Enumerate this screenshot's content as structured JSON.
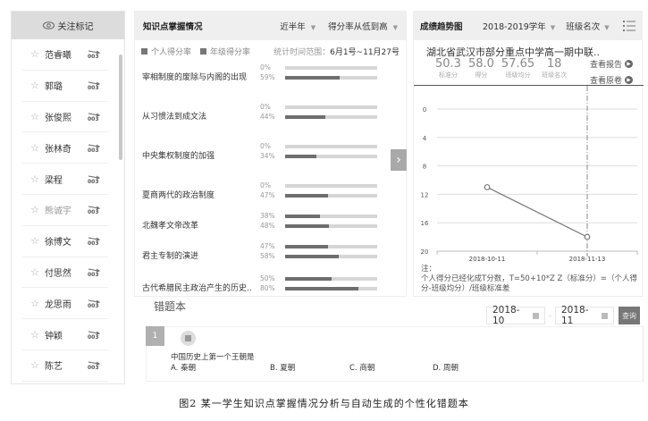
{
  "sidebar": {
    "header_label": "关注标记",
    "header_icon": "eye-icon",
    "students": [
      {
        "name": "范睿曦",
        "muted": false
      },
      {
        "name": "郭璐",
        "muted": false
      },
      {
        "name": "张俊熙",
        "muted": false
      },
      {
        "name": "张林奇",
        "muted": false
      },
      {
        "name": "梁程",
        "muted": false
      },
      {
        "name": "熊诚宇",
        "muted": true
      },
      {
        "name": "徐博文",
        "muted": false
      },
      {
        "name": "付思然",
        "muted": false
      },
      {
        "name": "龙思雨",
        "muted": false
      },
      {
        "name": "钟颖",
        "muted": false
      },
      {
        "name": "陈艺",
        "muted": false
      }
    ]
  },
  "knowledge": {
    "title": "知识点掌握情况",
    "period_select": "近半年",
    "sort_select": "得分率从低到高",
    "legend": {
      "personal": "个人得分率",
      "grade": "年级得分率"
    },
    "range_label": "统计时间范围：",
    "range_value": "6月1号~11月27号",
    "items": [
      {
        "label": "宰相制度的废除与内阁的出现",
        "personal": "0%",
        "grade": "59%",
        "p": 0,
        "g": 59
      },
      {
        "label": "从习惯法到成文法",
        "personal": "0%",
        "grade": "44%",
        "p": 0,
        "g": 44
      },
      {
        "label": "中央集权制度的加强",
        "personal": "0%",
        "grade": "34%",
        "p": 0,
        "g": 34
      },
      {
        "label": "夏商两代的政治制度",
        "personal": "0%",
        "grade": "47%",
        "p": 0,
        "g": 47
      },
      {
        "label": "北魏孝文帝改革",
        "personal": "38%",
        "grade": "48%",
        "p": 38,
        "g": 48
      },
      {
        "label": "君主专制的演进",
        "personal": "47%",
        "grade": "58%",
        "p": 47,
        "g": 58
      },
      {
        "label": "古代希腊民主政治产生的历史..",
        "personal": "50%",
        "grade": "80%",
        "p": 50,
        "g": 80
      }
    ],
    "next_icon": "chevron-right-icon"
  },
  "trend": {
    "title": "成绩趋势图",
    "year_select": "2018-2019学年",
    "metric_select": "班级名次",
    "exam_title": "湖北省武汉市部分重点中学高一期中联..",
    "stats": [
      {
        "value": "50.3",
        "label": "标准分"
      },
      {
        "value": "58.0",
        "label": "得分"
      },
      {
        "value": "57.65",
        "label": "班级均分"
      },
      {
        "value": "18",
        "label": "班级名次"
      }
    ],
    "view_report": "查看报告",
    "view_paper": "查看原卷",
    "note_title": "注：",
    "note_text": "个人得分已经化成T分数，T=50+10*Z    Z（标准分）=（个人得分-班级均分）/班级标准差"
  },
  "chart_data": {
    "type": "line",
    "title": "成绩趋势图",
    "xlabel": "",
    "ylabel": "班级名次",
    "categories": [
      "2018-10-11",
      "2018-11-13"
    ],
    "values": [
      11,
      18
    ],
    "y_ticks": [
      "0",
      "4",
      "8",
      "12",
      "16",
      "20"
    ],
    "ylim": [
      0,
      20
    ],
    "y_inverted": true,
    "grid": true,
    "highlight_x": "2018-11-13"
  },
  "wrongbook": {
    "title": "错题本",
    "date_from": "2018-10",
    "date_to": "2018-11",
    "date_sep": "–",
    "query_label": "查询",
    "questions": [
      {
        "num": "1",
        "text": "中国历史上第一个王朝是",
        "options": [
          "A. 秦朝",
          "B. 夏朝",
          "C. 商朝",
          "D. 周朝"
        ]
      }
    ]
  },
  "caption": "图2  某一学生知识点掌握情况分析与自动生成的个性化错题本"
}
